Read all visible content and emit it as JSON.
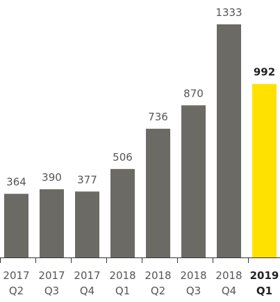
{
  "chart_data": {
    "type": "bar",
    "title": "",
    "xlabel": "",
    "ylabel": "",
    "categories": [
      [
        "2017",
        "Q2"
      ],
      [
        "2017",
        "Q3"
      ],
      [
        "2017",
        "Q4"
      ],
      [
        "2018",
        "Q1"
      ],
      [
        "2018",
        "Q2"
      ],
      [
        "2018",
        "Q3"
      ],
      [
        "2018",
        "Q4"
      ],
      [
        "2019",
        "Q1"
      ]
    ],
    "values": [
      364,
      390,
      377,
      506,
      736,
      870,
      1333,
      992
    ],
    "highlight_index": 7,
    "ylim": [
      0,
      1333
    ],
    "grid": false,
    "legend": "none",
    "colors": {
      "bar": "#6b6a65",
      "highlight": "#ffe100",
      "axis": "#333333"
    }
  }
}
